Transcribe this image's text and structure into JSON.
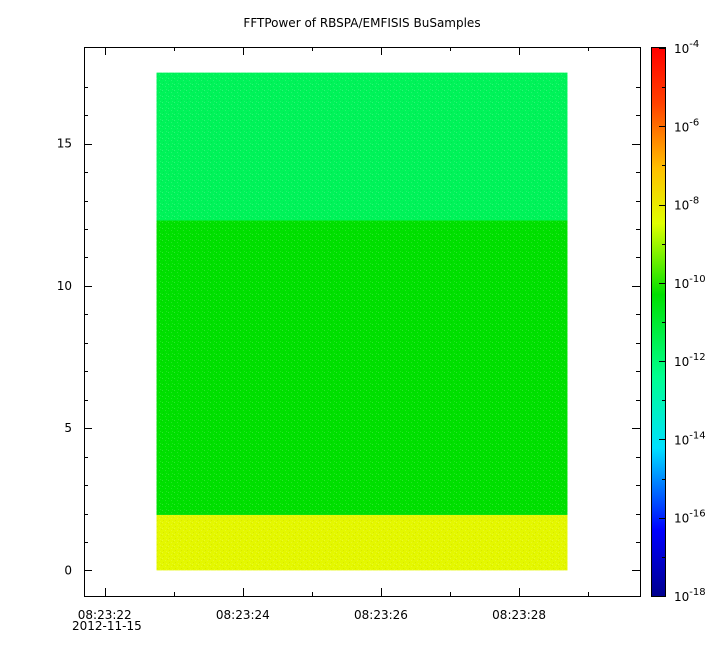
{
  "chart_data": {
    "type": "heatmap",
    "title": "FFTPower of RBSPA/EMFISIS  BuSamples",
    "xlabel": "",
    "ylabel": "",
    "x_ticks": [
      "08:23:22",
      "08:23:24",
      "08:23:26",
      "08:23:28"
    ],
    "x_tick_date": "2012-11-15",
    "x_range_seconds": [
      21.7,
      29.75
    ],
    "data_x_range_seconds": [
      22.75,
      28.7
    ],
    "ylim": [
      -0.9,
      18.4
    ],
    "y_ticks": [
      0,
      5,
      10,
      15
    ],
    "colorbar": {
      "scale": "log",
      "range": [
        1e-18,
        0.0001
      ],
      "tick_exponents": [
        -4,
        -6,
        -8,
        -10,
        -12,
        -14,
        -16,
        -18
      ],
      "tick_base": "10"
    },
    "bands": [
      {
        "y_from": 0.0,
        "y_to": 1.95,
        "log10_power": -8.3
      },
      {
        "y_from": 1.95,
        "y_to": 12.3,
        "log10_power": -10.3
      },
      {
        "y_from": 12.3,
        "y_to": 17.5,
        "log10_power": -11.6
      }
    ]
  }
}
